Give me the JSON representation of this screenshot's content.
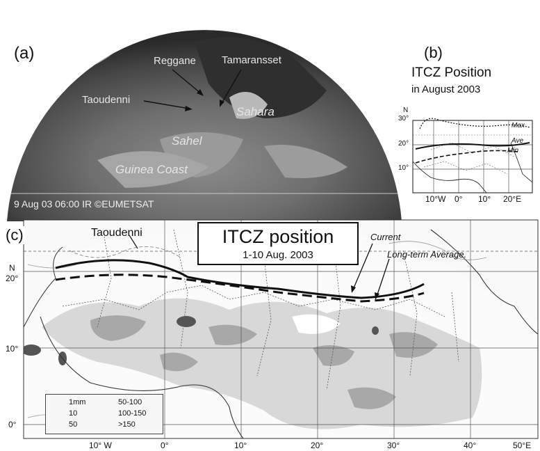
{
  "panel_a": {
    "tag": "(a)",
    "places": [
      "Reggane",
      "Tamaransset",
      "Taoudenni",
      "Sahara",
      "Sahel",
      "Guinea Coast"
    ],
    "caption": "9 Aug 03 06:00  IR  ©EUMETSAT"
  },
  "panel_b": {
    "tag": "(b)",
    "title_line1": "ITCZ Position",
    "title_line2": "in August 2003",
    "axis_north": "N",
    "lat_labels": [
      "30°",
      "20°",
      "10°"
    ],
    "lon_labels": [
      "10°W",
      "0°",
      "10°",
      "20°E"
    ],
    "curve_labels": [
      "Max",
      "Ave",
      "Min"
    ]
  },
  "panel_c": {
    "tag": "(c)",
    "title": "ITCZ position",
    "subtitle": "1-10 Aug. 2003",
    "place": "Taoudenni",
    "current_label": "Current",
    "average_label": "Long-term Average.",
    "axis_north": "N",
    "lat_labels": [
      "20°",
      "10°",
      "0°"
    ],
    "lon_labels": [
      "10° W",
      "0°",
      "10°",
      "20°",
      "30°",
      "40°",
      "50°E"
    ],
    "legend": {
      "items": [
        {
          "label": "1mm",
          "symbol": "thin-line"
        },
        {
          "label": "10",
          "symbol": "thin-line"
        },
        {
          "label": "50",
          "symbol": "thin-line"
        },
        {
          "label": "50-100",
          "color": "#d8d8d8"
        },
        {
          "label": "100-150",
          "color": "#a8a8a8"
        },
        {
          "label": ">150",
          "color": "#555555"
        }
      ]
    }
  },
  "colors": {
    "line": "#111111",
    "globe_dark": "#3a3a3a",
    "globe_light": "#8a8a8a"
  }
}
